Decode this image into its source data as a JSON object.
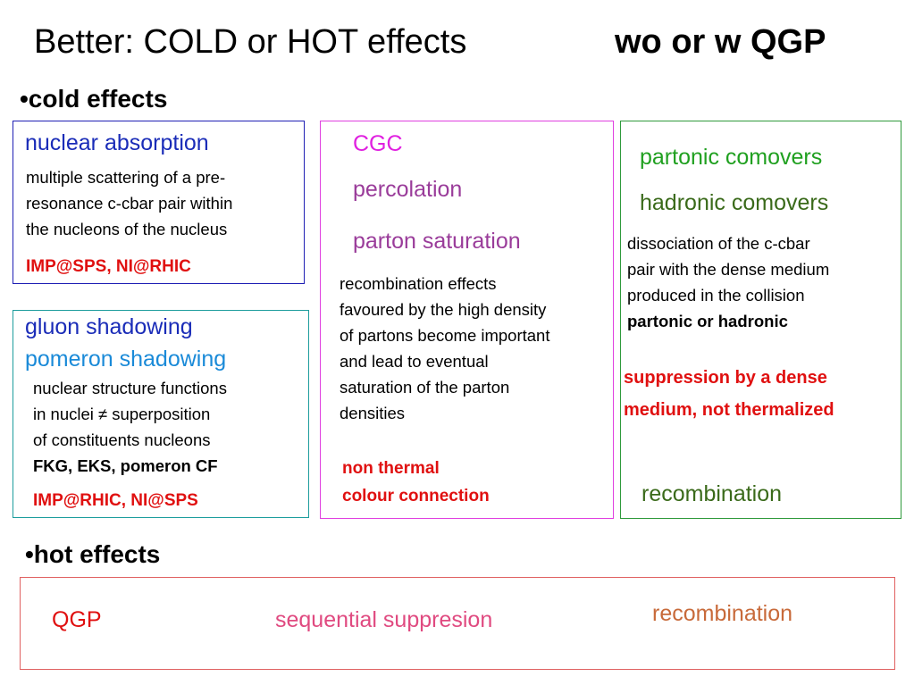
{
  "title": {
    "left": "Better: COLD or HOT effects",
    "right": "wo or w QGP"
  },
  "cold": {
    "heading": "•cold effects",
    "nuclear": {
      "title": "nuclear absorption",
      "lines": [
        "multiple scattering of a pre-",
        "resonance c-cbar pair within",
        "the nucleons of the nucleus"
      ],
      "refs": "IMP@SPS, NI@RHIC"
    },
    "gluon": {
      "title1": "gluon shadowing",
      "title2": "pomeron shadowing",
      "lines": [
        "nuclear structure functions",
        "in nuclei ≠ superposition",
        "of constituents nucleons"
      ],
      "models": "FKG, EKS, pomeron CF",
      "refs": "IMP@RHIC, NI@SPS"
    },
    "cgc": {
      "cgc": "CGC",
      "percolation": "percolation",
      "saturation": "parton saturation",
      "lines": [
        "recombination effects",
        "favoured by the high density",
        "of partons become important",
        "and lead to eventual",
        "saturation of the parton",
        "densities"
      ],
      "note_line1": "non  thermal",
      "note_line2": "colour connection"
    },
    "comovers": {
      "partonic": "partonic comovers",
      "hadronic": "hadronic comovers",
      "lines": [
        "dissociation of the c-cbar",
        "pair with the dense medium",
        "produced in the collision"
      ],
      "bold_line": "partonic or hadronic",
      "suppression_line1": "suppression by a dense",
      "suppression_line2": "medium, not thermalized",
      "recombination": "recombination"
    }
  },
  "hot": {
    "heading": "•hot effects",
    "qgp": "QGP",
    "sequential": "sequential suppresion",
    "recombination": "recombination"
  }
}
